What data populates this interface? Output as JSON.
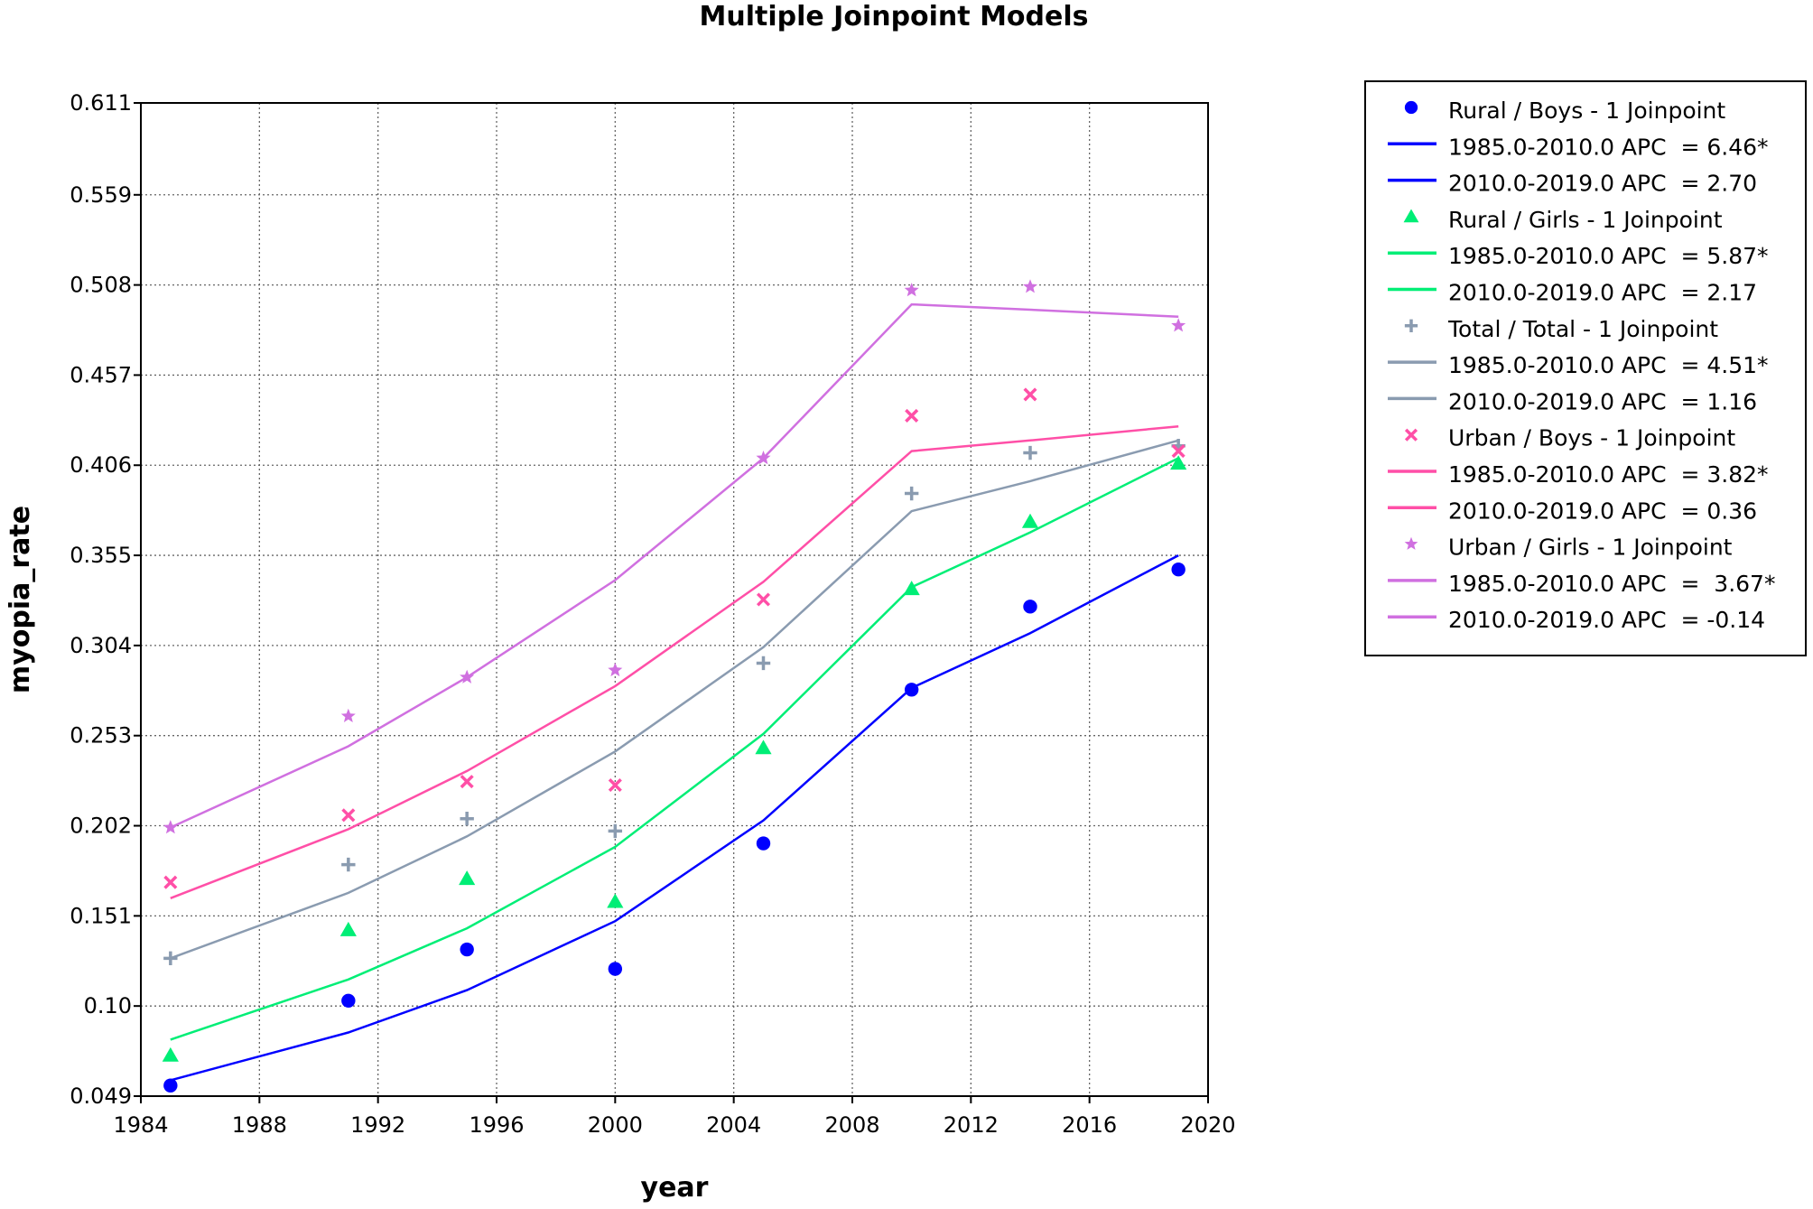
{
  "chart_data": {
    "type": "line",
    "title": "Multiple Joinpoint Models",
    "xlabel": "year",
    "ylabel": "myopia_rate",
    "xlim": [
      1984,
      2020
    ],
    "ylim": [
      0.049,
      0.611
    ],
    "x_ticks": [
      1984,
      1988,
      1992,
      1996,
      2000,
      2004,
      2008,
      2012,
      2016,
      2020
    ],
    "y_ticks": [
      "0.049",
      "0.10",
      "0.151",
      "0.202",
      "0.253",
      "0.304",
      "0.355",
      "0.406",
      "0.457",
      "0.508",
      "0.559",
      "0.611"
    ],
    "grid": true,
    "legend_position": "right",
    "series": [
      {
        "name": "Rural / Boys - 1 Joinpoint",
        "color": "#0000ff",
        "marker": "circle",
        "segments": [
          "1985.0-2010.0 APC  = 6.46*",
          "2010.0-2019.0 APC  = 2.70"
        ],
        "observed": {
          "x": [
            1985,
            1991,
            1995,
            2000,
            2005,
            2010,
            2014,
            2019
          ],
          "y": [
            0.055,
            0.103,
            0.132,
            0.121,
            0.192,
            0.279,
            0.326,
            0.347
          ]
        },
        "fitted": {
          "x": [
            1985,
            1991,
            1995,
            2000,
            2005,
            2010,
            2014,
            2019
          ],
          "y": [
            0.058,
            0.085,
            0.109,
            0.148,
            0.205,
            0.28,
            0.311,
            0.355
          ]
        }
      },
      {
        "name": "Rural / Girls - 1 Joinpoint",
        "color": "#00ee76",
        "marker": "triangle",
        "segments": [
          "1985.0-2010.0 APC  = 5.87*",
          "2010.0-2019.0 APC  = 2.17"
        ],
        "observed": {
          "x": [
            1985,
            1991,
            1995,
            2000,
            2005,
            2010,
            2014,
            2019
          ],
          "y": [
            0.072,
            0.143,
            0.172,
            0.159,
            0.246,
            0.336,
            0.374,
            0.407
          ]
        },
        "fitted": {
          "x": [
            1985,
            1991,
            1995,
            2000,
            2005,
            2010,
            2014,
            2019
          ],
          "y": [
            0.081,
            0.115,
            0.144,
            0.19,
            0.254,
            0.337,
            0.368,
            0.41
          ]
        }
      },
      {
        "name": "Total / Total - 1 Joinpoint",
        "color": "#8a9bb0",
        "marker": "plus",
        "segments": [
          "1985.0-2010.0 APC  = 4.51*",
          "2010.0-2019.0 APC  = 1.16"
        ],
        "observed": {
          "x": [
            1985,
            1991,
            1995,
            2000,
            2005,
            2010,
            2014,
            2019
          ],
          "y": [
            0.127,
            0.18,
            0.206,
            0.199,
            0.294,
            0.39,
            0.413,
            0.417
          ]
        },
        "fitted": {
          "x": [
            1985,
            1991,
            1995,
            2000,
            2005,
            2010,
            2014,
            2019
          ],
          "y": [
            0.127,
            0.164,
            0.196,
            0.244,
            0.303,
            0.38,
            0.397,
            0.42
          ]
        }
      },
      {
        "name": "Urban / Boys - 1 Joinpoint",
        "color": "#ff4fa7",
        "marker": "x",
        "segments": [
          "1985.0-2010.0 APC  = 3.82*",
          "2010.0-2019.0 APC  = 0.36"
        ],
        "observed": {
          "x": [
            1985,
            1991,
            1995,
            2000,
            2005,
            2010,
            2014,
            2019
          ],
          "y": [
            0.17,
            0.208,
            0.227,
            0.225,
            0.33,
            0.434,
            0.446,
            0.414
          ]
        },
        "fitted": {
          "x": [
            1985,
            1991,
            1995,
            2000,
            2005,
            2010,
            2014,
            2019
          ],
          "y": [
            0.161,
            0.2,
            0.233,
            0.281,
            0.34,
            0.414,
            0.42,
            0.428
          ]
        }
      },
      {
        "name": "Urban / Girls - 1 Joinpoint",
        "color": "#d070e0",
        "marker": "star",
        "segments": [
          "1985.0-2010.0 APC  =  3.67*",
          "2010.0-2019.0 APC  = -0.14"
        ],
        "observed": {
          "x": [
            1985,
            1991,
            1995,
            2000,
            2005,
            2010,
            2014,
            2019
          ],
          "y": [
            0.201,
            0.264,
            0.286,
            0.29,
            0.41,
            0.505,
            0.507,
            0.485
          ]
        },
        "fitted": {
          "x": [
            1985,
            1991,
            1995,
            2000,
            2005,
            2010,
            2014,
            2019
          ],
          "y": [
            0.201,
            0.247,
            0.286,
            0.341,
            0.41,
            0.497,
            0.494,
            0.49
          ]
        }
      }
    ]
  }
}
